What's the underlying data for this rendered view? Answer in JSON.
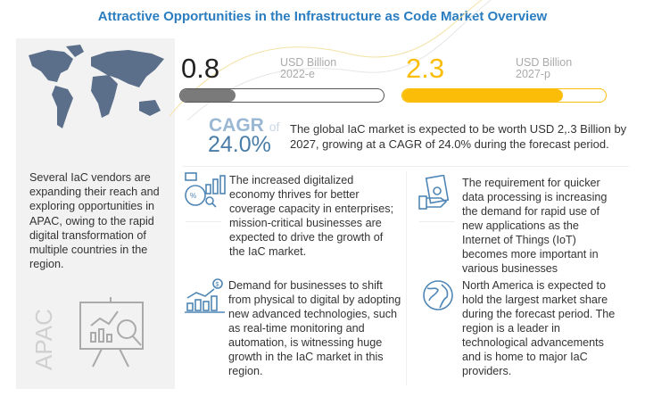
{
  "title": "Attractive Opportunities in the Infrastructure as Code Market Overview",
  "left_panel": {
    "lines": [
      "Several IaC vendors are",
      "expanding their reach and",
      "exploring opportunities in",
      "APAC, owing to the rapid",
      "digital transformation of",
      "multiple countries in the",
      "region."
    ],
    "region_label": "APAC",
    "icons": [
      "world-map",
      "presentation-analytics"
    ]
  },
  "stats": [
    {
      "value": "0.8",
      "unit": "USD Billion",
      "year": "2022-e",
      "bar_fill_percent": 27,
      "color": "#7a7a7a"
    },
    {
      "value": "2.3",
      "unit": "USD Billion",
      "year": "2027-p",
      "bar_fill_percent": 79,
      "color": "#fbbd08"
    }
  ],
  "cagr": {
    "label": "CAGR",
    "of": "of",
    "value": "24.0%",
    "description_lines": [
      "The global IaC market is expected to be worth USD 2,.3 Billion by",
      "2027, growing at a CAGR of 24.0% during the forecast period."
    ]
  },
  "points": [
    {
      "icon": "digital-economy",
      "lines": [
        "The increased digitalized",
        "economy thrives for better",
        "coverage capacity in enterprises;",
        "mission-critical businesses are",
        "expected to drive the growth of",
        "the IaC market."
      ]
    },
    {
      "icon": "money-hand",
      "lines": [
        "The requirement for quicker",
        "data processing is increasing",
        "the demand for rapid use of",
        "new applications as the",
        "Internet of Things (IoT)",
        "becomes more important in",
        "various businesses"
      ]
    },
    {
      "icon": "growth-chart",
      "lines": [
        "Demand for businesses to shift",
        "from physical to digital by adopting",
        "new advanced technologies, such",
        "as real-time monitoring and",
        "automation, is witnessing huge",
        "growth in the IaC market in this",
        "region."
      ]
    },
    {
      "icon": "globe",
      "lines": [
        "North America is expected to",
        "hold the largest market share",
        "during the forecast period. The",
        "region is a leader in",
        "technological advancements",
        "and is home to major IaC",
        "providers."
      ]
    }
  ],
  "colors": {
    "title": "#2a7dc0",
    "cagr": "#4a7da8",
    "icon": "#4f86b5",
    "map": "#5b6f8a"
  }
}
